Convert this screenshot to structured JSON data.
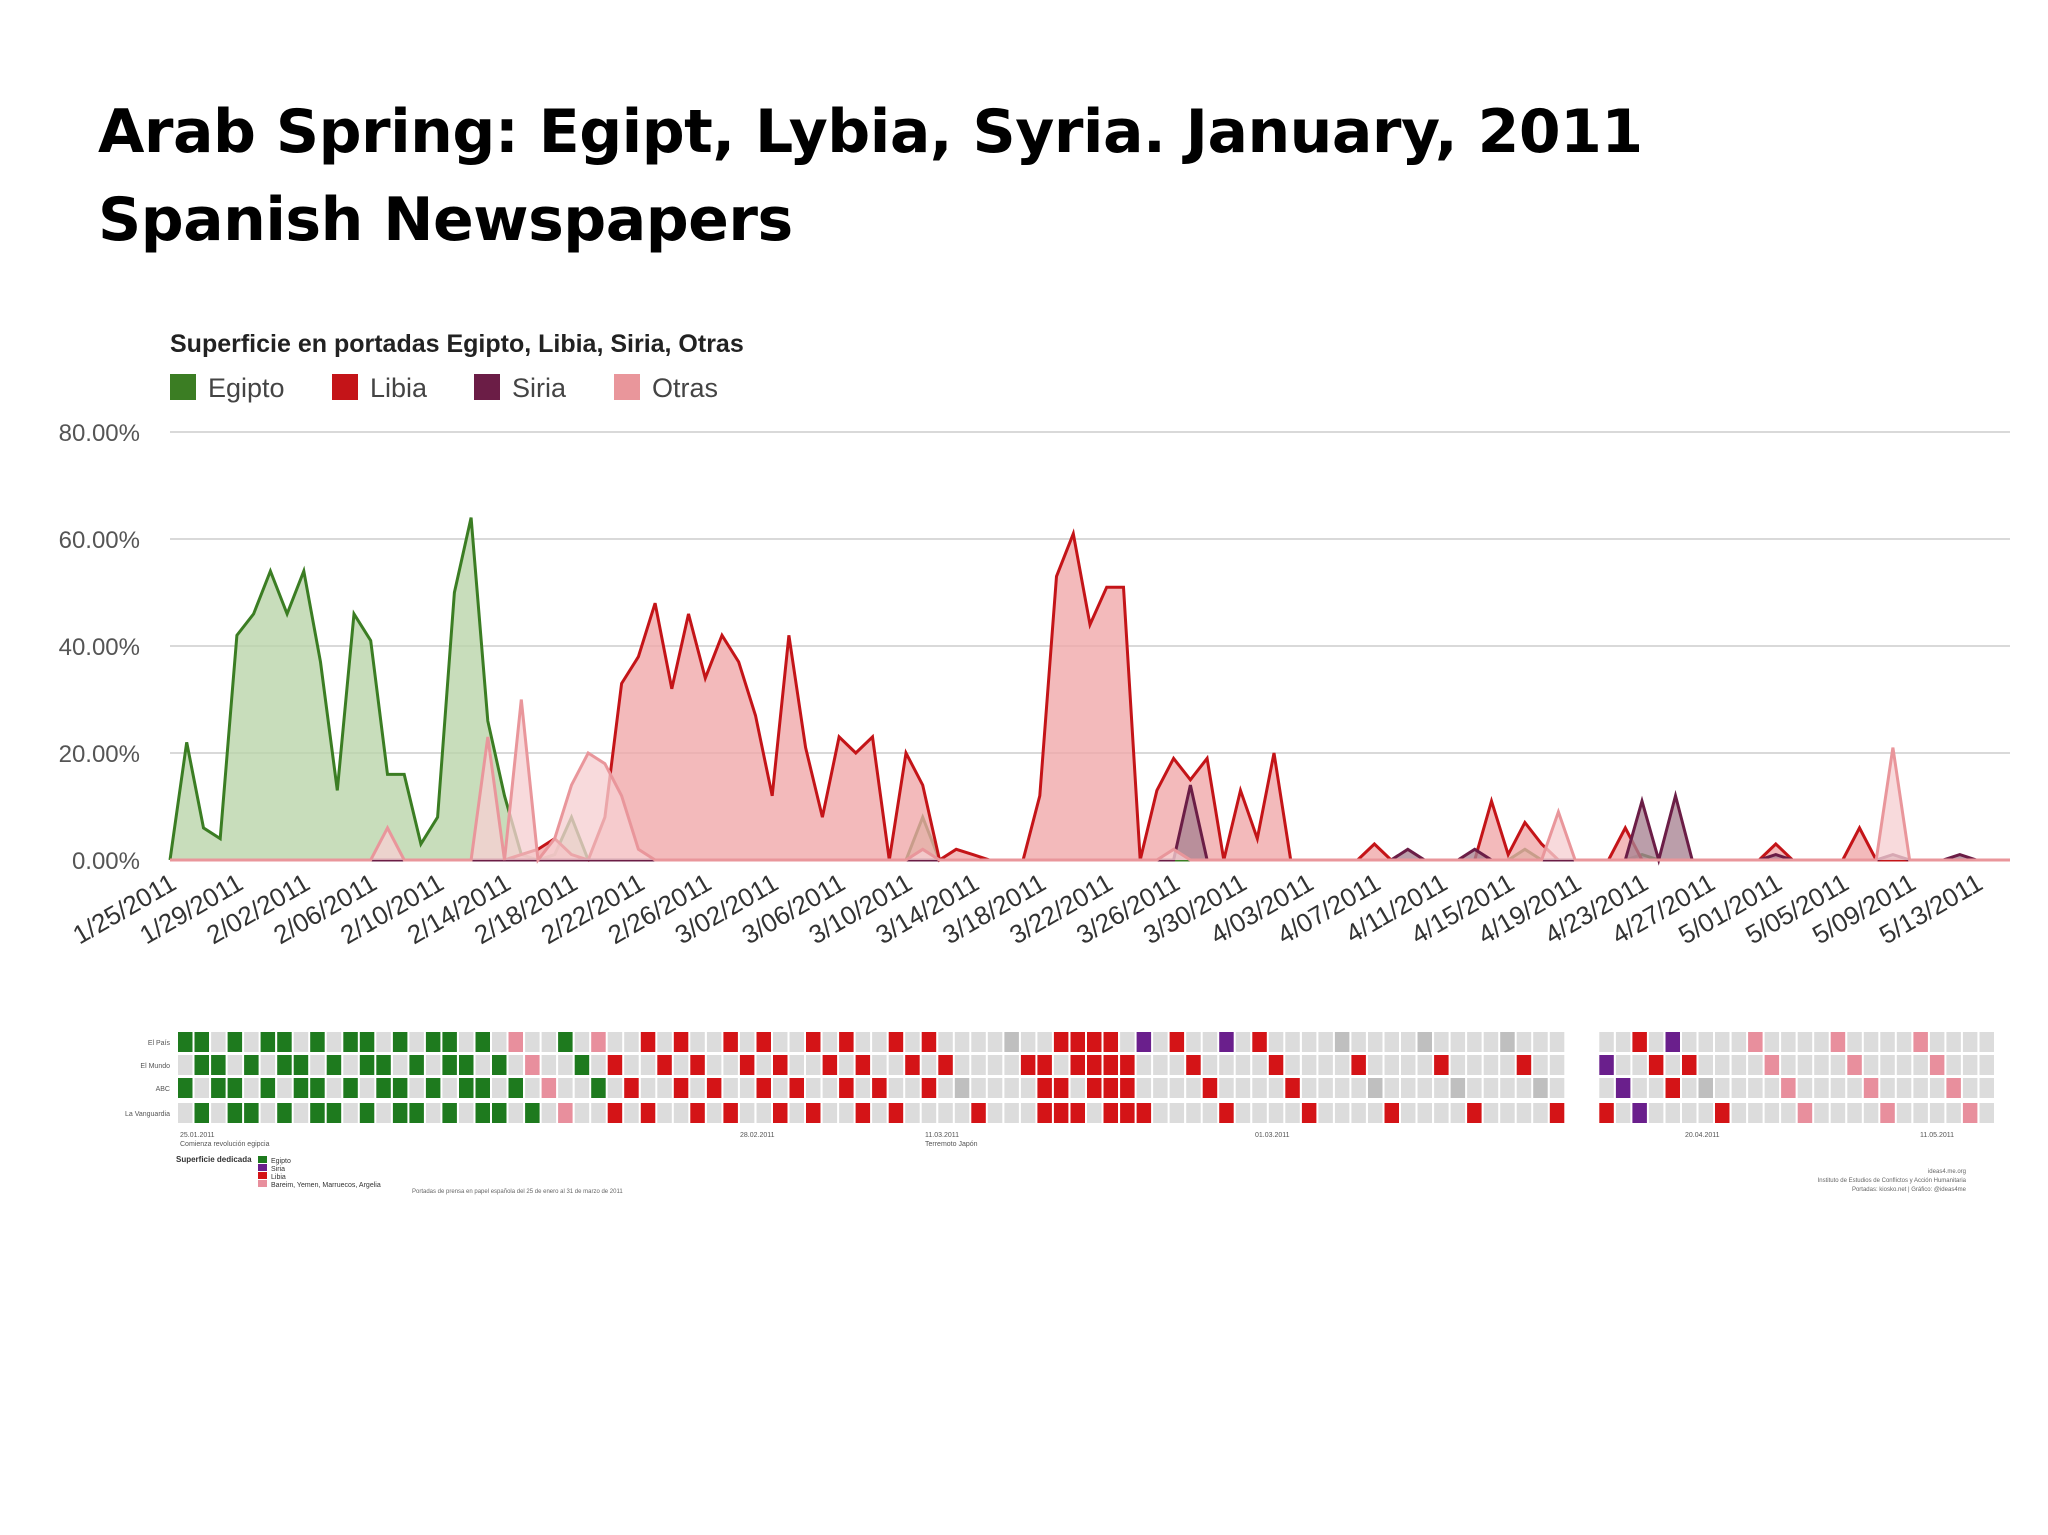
{
  "slide": {
    "title_line1": "Arab Spring: Egipt, Lybia, Syria. January, 2011",
    "title_line2": "Spanish Newspapers"
  },
  "chart_data": {
    "type": "area",
    "title": "Superficie en portadas Egipto, Libia, Siria, Otras",
    "ylim": [
      0,
      80
    ],
    "yticks": [
      "0.00%",
      "20.00%",
      "40.00%",
      "60.00%",
      "80.00%"
    ],
    "xtick_labels": [
      "1/25/2011",
      "1/29/2011",
      "2/02/2011",
      "2/06/2011",
      "2/10/2011",
      "2/14/2011",
      "2/18/2011",
      "2/22/2011",
      "2/26/2011",
      "3/02/2011",
      "3/06/2011",
      "3/10/2011",
      "3/14/2011",
      "3/18/2011",
      "3/22/2011",
      "3/26/2011",
      "3/30/2011",
      "4/03/2011",
      "4/07/2011",
      "4/11/2011",
      "4/15/2011",
      "4/19/2011",
      "4/23/2011",
      "4/27/2011",
      "5/01/2011",
      "5/05/2011",
      "5/09/2011",
      "5/13/2011"
    ],
    "x_start": "1/25/2011",
    "grid": true,
    "legend_position": "top-left",
    "series": [
      {
        "name": "Egipto",
        "color": "#3b7d23",
        "fill": "#b8d3a8",
        "points": [
          [
            0,
            0
          ],
          [
            1,
            22
          ],
          [
            2,
            6
          ],
          [
            3,
            4
          ],
          [
            4,
            42
          ],
          [
            5,
            46
          ],
          [
            6,
            54
          ],
          [
            7,
            46
          ],
          [
            8,
            54
          ],
          [
            9,
            37
          ],
          [
            10,
            13
          ],
          [
            11,
            46
          ],
          [
            12,
            41
          ],
          [
            13,
            16
          ],
          [
            14,
            16
          ],
          [
            15,
            3
          ],
          [
            16,
            8
          ],
          [
            17,
            50
          ],
          [
            18,
            64
          ],
          [
            19,
            26
          ],
          [
            20,
            12
          ],
          [
            21,
            1
          ],
          [
            22,
            0
          ],
          [
            23,
            1
          ],
          [
            24,
            8
          ],
          [
            25,
            0
          ],
          [
            26,
            0
          ],
          [
            44,
            0
          ],
          [
            45,
            8
          ],
          [
            46,
            0
          ],
          [
            80,
            0
          ],
          [
            81,
            2
          ],
          [
            82,
            0
          ],
          [
            87,
            0
          ],
          [
            88,
            1
          ],
          [
            89,
            0
          ]
        ]
      },
      {
        "name": "Libia",
        "color": "#c41418",
        "fill": "#efa7a8",
        "points": [
          [
            0,
            0
          ],
          [
            20,
            0
          ],
          [
            21,
            1
          ],
          [
            22,
            2
          ],
          [
            23,
            4
          ],
          [
            24,
            1
          ],
          [
            25,
            0
          ],
          [
            26,
            8
          ],
          [
            27,
            33
          ],
          [
            28,
            38
          ],
          [
            29,
            48
          ],
          [
            30,
            32
          ],
          [
            31,
            46
          ],
          [
            32,
            34
          ],
          [
            33,
            42
          ],
          [
            34,
            37
          ],
          [
            35,
            27
          ],
          [
            36,
            12
          ],
          [
            37,
            42
          ],
          [
            38,
            21
          ],
          [
            39,
            8
          ],
          [
            40,
            23
          ],
          [
            41,
            20
          ],
          [
            42,
            23
          ],
          [
            43,
            0
          ],
          [
            44,
            20
          ],
          [
            45,
            14
          ],
          [
            46,
            0
          ],
          [
            47,
            2
          ],
          [
            48,
            1
          ],
          [
            49,
            0
          ],
          [
            51,
            0
          ],
          [
            52,
            12
          ],
          [
            53,
            53
          ],
          [
            54,
            61
          ],
          [
            55,
            44
          ],
          [
            56,
            51
          ],
          [
            57,
            51
          ],
          [
            58,
            0
          ],
          [
            59,
            13
          ],
          [
            60,
            19
          ],
          [
            61,
            15
          ],
          [
            62,
            19
          ],
          [
            63,
            0
          ],
          [
            64,
            13
          ],
          [
            65,
            4
          ],
          [
            66,
            20
          ],
          [
            67,
            0
          ],
          [
            71,
            0
          ],
          [
            72,
            3
          ],
          [
            73,
            0
          ],
          [
            78,
            0
          ],
          [
            79,
            11
          ],
          [
            80,
            1
          ],
          [
            81,
            7
          ],
          [
            82,
            3
          ],
          [
            83,
            0
          ],
          [
            86,
            0
          ],
          [
            87,
            6
          ],
          [
            88,
            0
          ],
          [
            95,
            0
          ],
          [
            96,
            3
          ],
          [
            97,
            0
          ],
          [
            100,
            0
          ],
          [
            101,
            6
          ],
          [
            102,
            0
          ],
          [
            110,
            0
          ]
        ]
      },
      {
        "name": "Siria",
        "color": "#6b1d46",
        "fill": "#a88392",
        "points": [
          [
            0,
            0
          ],
          [
            60,
            0
          ],
          [
            61,
            14
          ],
          [
            62,
            0
          ],
          [
            73,
            0
          ],
          [
            74,
            2
          ],
          [
            75,
            0
          ],
          [
            77,
            0
          ],
          [
            78,
            2
          ],
          [
            79,
            0
          ],
          [
            87,
            0
          ],
          [
            88,
            11
          ],
          [
            89,
            0
          ],
          [
            90,
            12
          ],
          [
            91,
            0
          ],
          [
            95,
            0
          ],
          [
            96,
            1
          ],
          [
            97,
            0
          ],
          [
            102,
            0
          ],
          [
            103,
            1
          ],
          [
            104,
            0
          ],
          [
            106,
            0
          ],
          [
            107,
            1
          ],
          [
            108,
            0
          ],
          [
            110,
            0
          ]
        ]
      },
      {
        "name": "Otras",
        "color": "#e9969b",
        "fill": "#f6d0d2",
        "points": [
          [
            0,
            0
          ],
          [
            12,
            0
          ],
          [
            13,
            6
          ],
          [
            14,
            0
          ],
          [
            18,
            0
          ],
          [
            19,
            23
          ],
          [
            20,
            0
          ],
          [
            21,
            30
          ],
          [
            22,
            0
          ],
          [
            23,
            4
          ],
          [
            24,
            14
          ],
          [
            25,
            20
          ],
          [
            26,
            18
          ],
          [
            27,
            12
          ],
          [
            28,
            2
          ],
          [
            29,
            0
          ],
          [
            44,
            0
          ],
          [
            45,
            2
          ],
          [
            46,
            0
          ],
          [
            59,
            0
          ],
          [
            60,
            2
          ],
          [
            61,
            0
          ],
          [
            82,
            0
          ],
          [
            83,
            9
          ],
          [
            84,
            0
          ],
          [
            102,
            0
          ],
          [
            103,
            21
          ],
          [
            104,
            0
          ],
          [
            110,
            0
          ]
        ]
      }
    ]
  },
  "strip": {
    "row_labels": [
      "El País",
      "El Mundo",
      "ABC",
      "La Vanguardia"
    ],
    "date_labels": [
      "25.01.2011",
      "28.02.2011",
      "11.03.2011",
      "01.03.2011",
      "20.04.2011",
      "11.05.2011"
    ],
    "event_labels": [
      "Comienza revolución egipcia",
      "Terremoto Japón"
    ],
    "legend_title": "Superficie dedicada",
    "legend_items": [
      {
        "label": "Egipto",
        "color": "#1e7a1e"
      },
      {
        "label": "Siria",
        "color": "#6a1f8c"
      },
      {
        "label": "Libia",
        "color": "#d41417"
      },
      {
        "label": "Bareim, Yemen, Marruecos, Argelia",
        "color": "#e88f9d"
      }
    ],
    "source_caption": "Portadas de prensa en papel española del 25 de enero al 31 de marzo de 2011",
    "credits": [
      "ideas4.me.org",
      "Instituto de Estudios de Conflictos y Acción Humanitaria",
      "Portadas: kiosko.net | Gráfico: @ideas4me"
    ]
  }
}
